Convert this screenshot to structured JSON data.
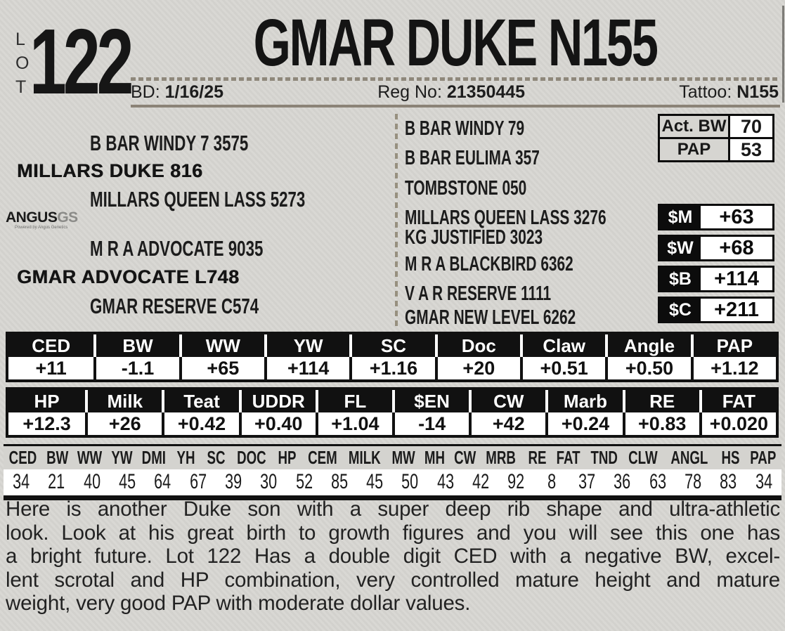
{
  "lot": {
    "letters": [
      "L",
      "O",
      "T"
    ],
    "number": "122"
  },
  "title": "GMAR DUKE N155",
  "info_bar": {
    "bd_label": "BD:",
    "bd_value": "1/16/25",
    "reg_label": "Reg No:",
    "reg_value": "21350445",
    "tattoo_label": "Tattoo:",
    "tattoo_value": "N155"
  },
  "pedigree": {
    "sire_sire": "B BAR WINDY 7 3575",
    "sire": "MILLARS DUKE 816",
    "sire_dam": "MILLARS QUEEN LASS 5273",
    "dam_sire": "M R A ADVOCATE 9035",
    "dam": "GMAR ADVOCATE L748",
    "dam_dam": "GMAR RESERVE C574",
    "gen3": [
      "B BAR WINDY 79",
      "B BAR EULIMA 357",
      "TOMBSTONE 050",
      "MILLARS QUEEN LASS 3276",
      "KG JUSTIFIED 3023",
      "M R A BLACKBIRD 6362",
      "V A R RESERVE 1111",
      "GMAR NEW LEVEL 6262"
    ]
  },
  "logo": {
    "name": "ANGUS",
    "suffix": "GS",
    "tagline": "Powered by Angus Genetics"
  },
  "measurements": {
    "act_bw_label": "Act. BW",
    "act_bw_value": "70",
    "pap_label": "PAP",
    "pap_value": "53"
  },
  "dollar_values": {
    "m_label": "$M",
    "m_value": "+63",
    "w_label": "$W",
    "w_value": "+68",
    "b_label": "$B",
    "b_value": "+114",
    "c_label": "$C",
    "c_value": "+211"
  },
  "epd_row1": {
    "headers": [
      "CED",
      "BW",
      "WW",
      "YW",
      "SC",
      "Doc",
      "Claw",
      "Angle",
      "PAP"
    ],
    "values": [
      "+11",
      "-1.1",
      "+65",
      "+114",
      "+1.16",
      "+20",
      "+0.51",
      "+0.50",
      "+1.12"
    ]
  },
  "epd_row2": {
    "headers": [
      "HP",
      "Milk",
      "Teat",
      "UDDR",
      "FL",
      "$EN",
      "CW",
      "Marb",
      "RE",
      "FAT"
    ],
    "values": [
      "+12.3",
      "+26",
      "+0.42",
      "+0.40",
      "+1.04",
      "-14",
      "+42",
      "+0.24",
      "+0.83",
      "+0.020"
    ]
  },
  "percentiles": {
    "headers": [
      "CED",
      "BW",
      "WW",
      "YW",
      "DMI",
      "YH",
      "SC",
      "DOC",
      "HP",
      "CEM",
      "MILK",
      "MW",
      "MH",
      "CW",
      "MRB",
      "RE",
      "FAT",
      "TND",
      "CLW",
      "ANGL",
      "HS",
      "PAP"
    ],
    "values": [
      "34",
      "21",
      "40",
      "45",
      "64",
      "67",
      "39",
      "30",
      "52",
      "85",
      "45",
      "50",
      "43",
      "42",
      "92",
      "8",
      "37",
      "36",
      "63",
      "78",
      "83",
      "34"
    ]
  },
  "description_lines": [
    "Here is another Duke son with a super deep rib shape and ultra-athletic",
    "look. Look at his great birth to growth figures and you will see this one has",
    "a bright future. Lot 122 Has a double digit CED with a negative BW, excel-",
    "lent scrotal and HP combination, very controlled mature height and mature",
    "weight, very good PAP with moderate dollar values."
  ]
}
